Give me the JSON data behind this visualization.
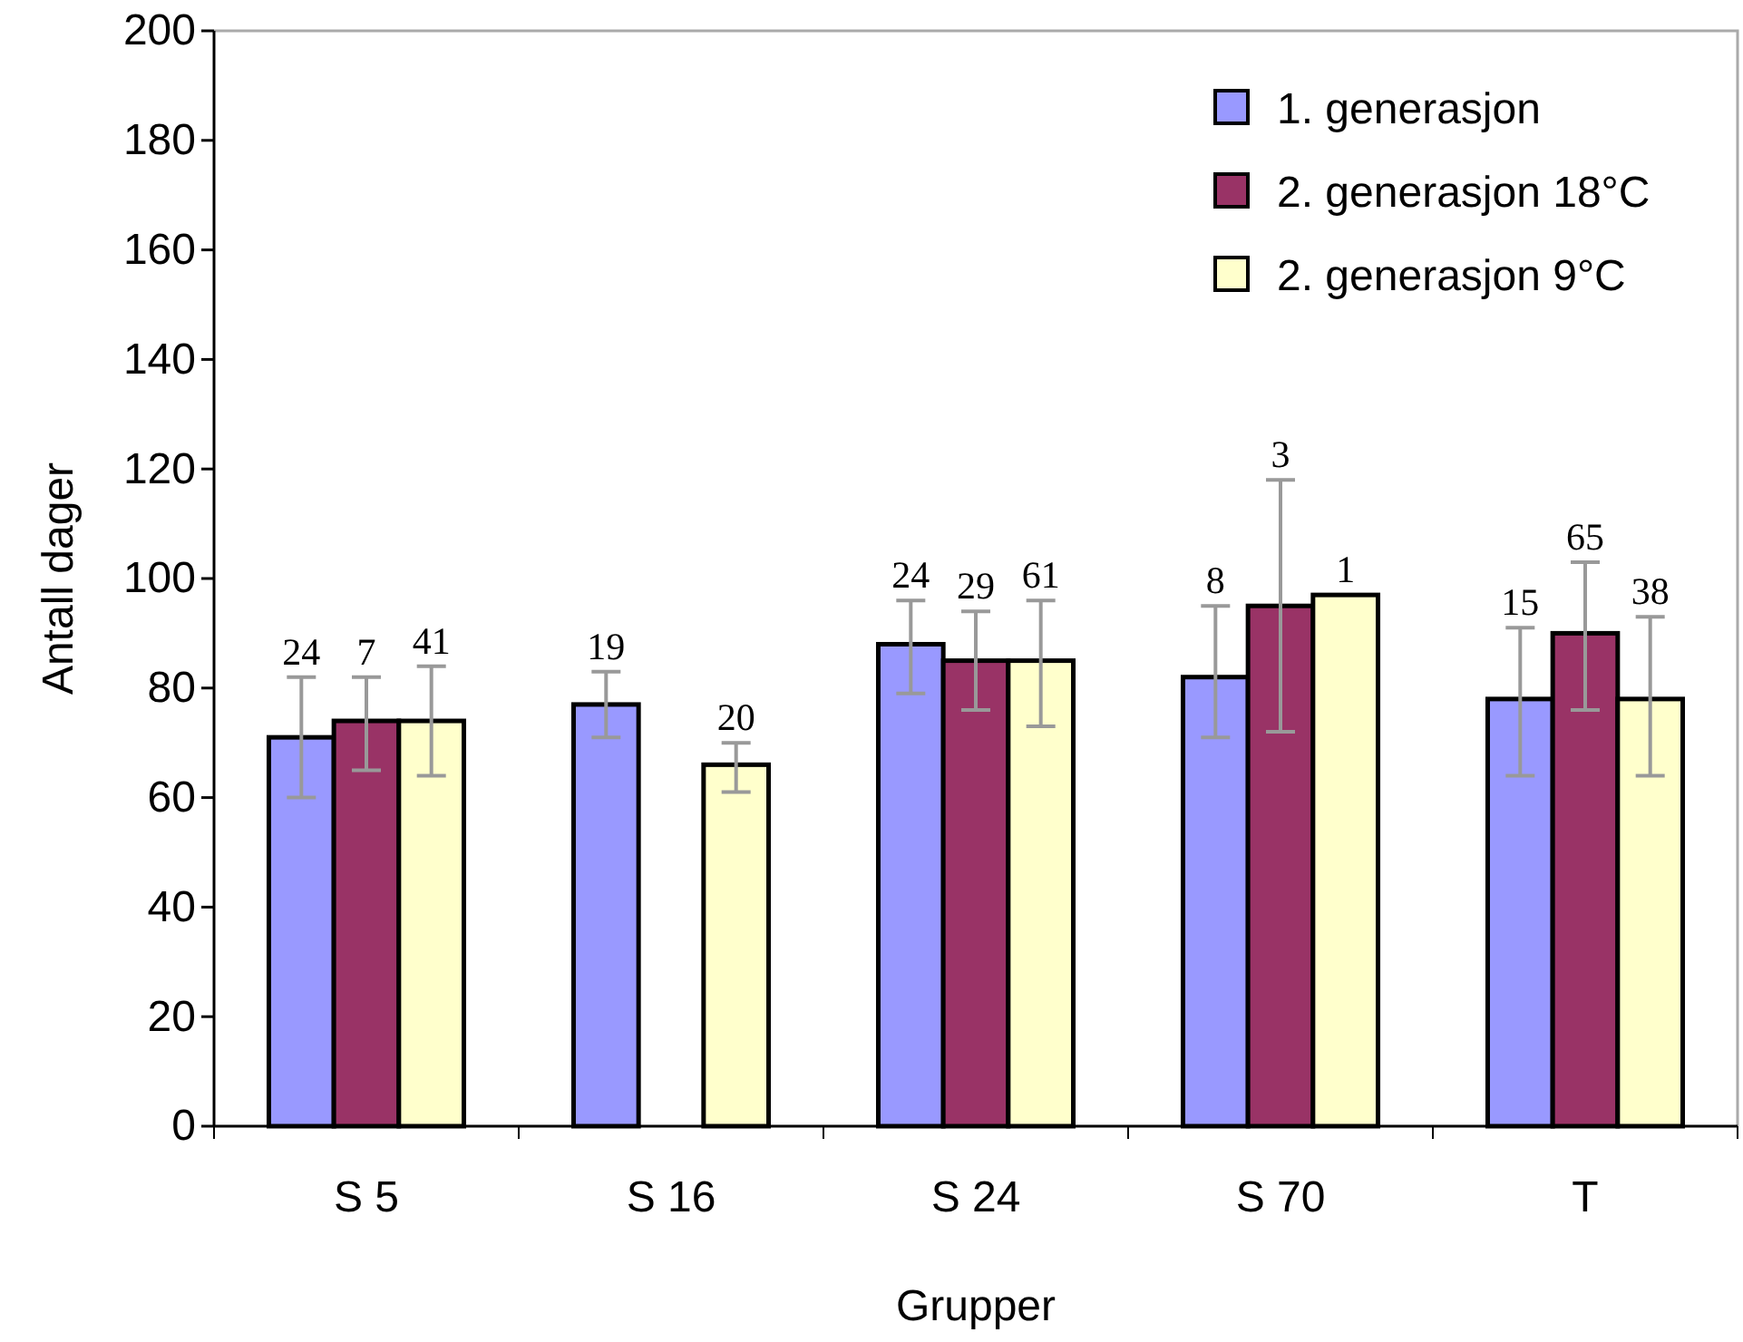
{
  "chart_data": {
    "type": "bar",
    "xlabel": "Grupper",
    "ylabel": "Antall dager",
    "categories": [
      "S 5",
      "S 16",
      "S 24",
      "S 70",
      "T"
    ],
    "ylim": [
      0,
      200
    ],
    "yticks": [
      0,
      20,
      40,
      60,
      80,
      100,
      120,
      140,
      160,
      180,
      200
    ],
    "grid": false,
    "legend": "top right",
    "series": [
      {
        "name": "1. generasjon",
        "color": "#9999ff",
        "values": [
          71,
          77,
          88,
          82,
          78
        ],
        "errors": [
          [
            60,
            82
          ],
          [
            71,
            83
          ],
          [
            79,
            96
          ],
          [
            71,
            95
          ],
          [
            64,
            91
          ]
        ]
      },
      {
        "name": "2. generasjon 18°C",
        "color": "#993366",
        "values": [
          74,
          null,
          85,
          95,
          90
        ],
        "errors": [
          [
            65,
            82
          ],
          null,
          [
            76,
            94
          ],
          [
            72,
            118
          ],
          [
            76,
            103
          ]
        ]
      },
      {
        "name": "2. generasjon 9°C",
        "color": "#ffffcc",
        "values": [
          74,
          66,
          85,
          97,
          78
        ],
        "errors": [
          [
            64,
            84
          ],
          [
            61,
            70
          ],
          [
            73,
            96
          ],
          null,
          [
            64,
            93
          ]
        ]
      }
    ],
    "annotations": [
      {
        "text": "24",
        "x": "S 5",
        "y": 71
      },
      {
        "text": "7",
        "x": "S 5",
        "y": 74
      },
      {
        "text": "41",
        "x": "S 5",
        "y": 74
      },
      "19",
      "20",
      {
        "text": "24",
        "x": "S 24",
        "y": 88
      },
      {
        "text": "29",
        "x": "S 24",
        "y": 85
      },
      {
        "text": "61",
        "x": "S 24",
        "y": 85
      },
      {
        "text": "8",
        "x": "S 70",
        "y": 82
      },
      "3",
      {
        "text": "1",
        "x": "S 70",
        "y": 97
      },
      {
        "text": "15",
        "x": "T",
        "y": 78
      },
      {
        "text": "65",
        "x": "T",
        "y": 90
      },
      {
        "text": "38",
        "x": "T",
        "y": 78
      }
    ]
  }
}
